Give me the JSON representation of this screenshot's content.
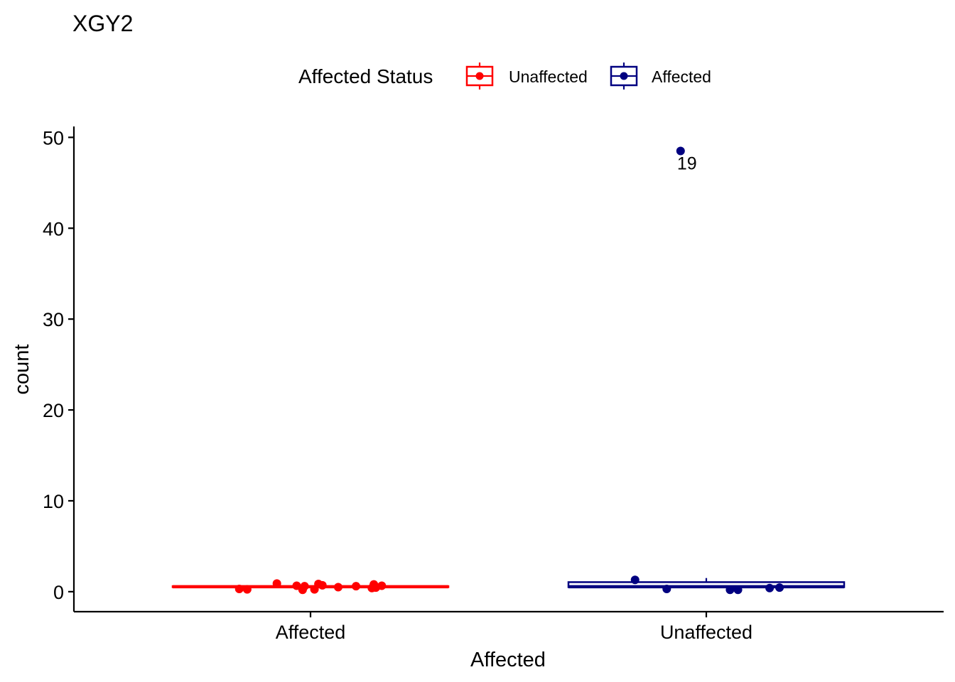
{
  "chart_data": {
    "type": "box",
    "title": "XGY2",
    "xlabel": "Affected",
    "ylabel": "count",
    "ylim": [
      -2.2,
      51.2
    ],
    "y_ticks": [
      0,
      10,
      20,
      30,
      40,
      50
    ],
    "categories": [
      "Affected",
      "Unaffected"
    ],
    "grid": false,
    "legend": {
      "title": "Affected Status",
      "placement": "top",
      "entries": [
        {
          "label": "Unaffected",
          "color": "#FF0000"
        },
        {
          "label": "Affected",
          "color": "#000080"
        }
      ]
    },
    "series": [
      {
        "name": "Unaffected",
        "category": "Affected",
        "color": "#FF0000",
        "box": {
          "q1": 0.5,
          "median": 0.55,
          "q3": 0.6,
          "whisker_low": 0.5,
          "whisker_high": 0.6
        },
        "points": [
          {
            "xoff": -0.18,
            "y": 0.3
          },
          {
            "xoff": -0.16,
            "y": 0.25
          },
          {
            "xoff": -0.085,
            "y": 0.9
          },
          {
            "xoff": -0.035,
            "y": 0.65
          },
          {
            "xoff": -0.02,
            "y": 0.2
          },
          {
            "xoff": -0.015,
            "y": 0.6
          },
          {
            "xoff": 0.01,
            "y": 0.25
          },
          {
            "xoff": 0.02,
            "y": 0.85
          },
          {
            "xoff": 0.03,
            "y": 0.7
          },
          {
            "xoff": 0.07,
            "y": 0.5
          },
          {
            "xoff": 0.115,
            "y": 0.6
          },
          {
            "xoff": 0.155,
            "y": 0.4
          },
          {
            "xoff": 0.16,
            "y": 0.8
          },
          {
            "xoff": 0.165,
            "y": 0.45
          },
          {
            "xoff": 0.18,
            "y": 0.65
          }
        ]
      },
      {
        "name": "Affected",
        "category": "Unaffected",
        "color": "#000080",
        "box": {
          "q1": 0.5,
          "median": 0.55,
          "q3": 1.05,
          "whisker_low": 0.5,
          "whisker_high": 1.5
        },
        "points": [
          {
            "xoff": -0.18,
            "y": 1.3
          },
          {
            "xoff": -0.1,
            "y": 0.3
          },
          {
            "xoff": 0.06,
            "y": 0.2
          },
          {
            "xoff": 0.08,
            "y": 0.2
          },
          {
            "xoff": 0.16,
            "y": 0.4
          },
          {
            "xoff": 0.185,
            "y": 0.45
          }
        ],
        "outliers": [
          {
            "xoff": -0.065,
            "y": 48.5,
            "label": "19"
          }
        ]
      }
    ]
  }
}
